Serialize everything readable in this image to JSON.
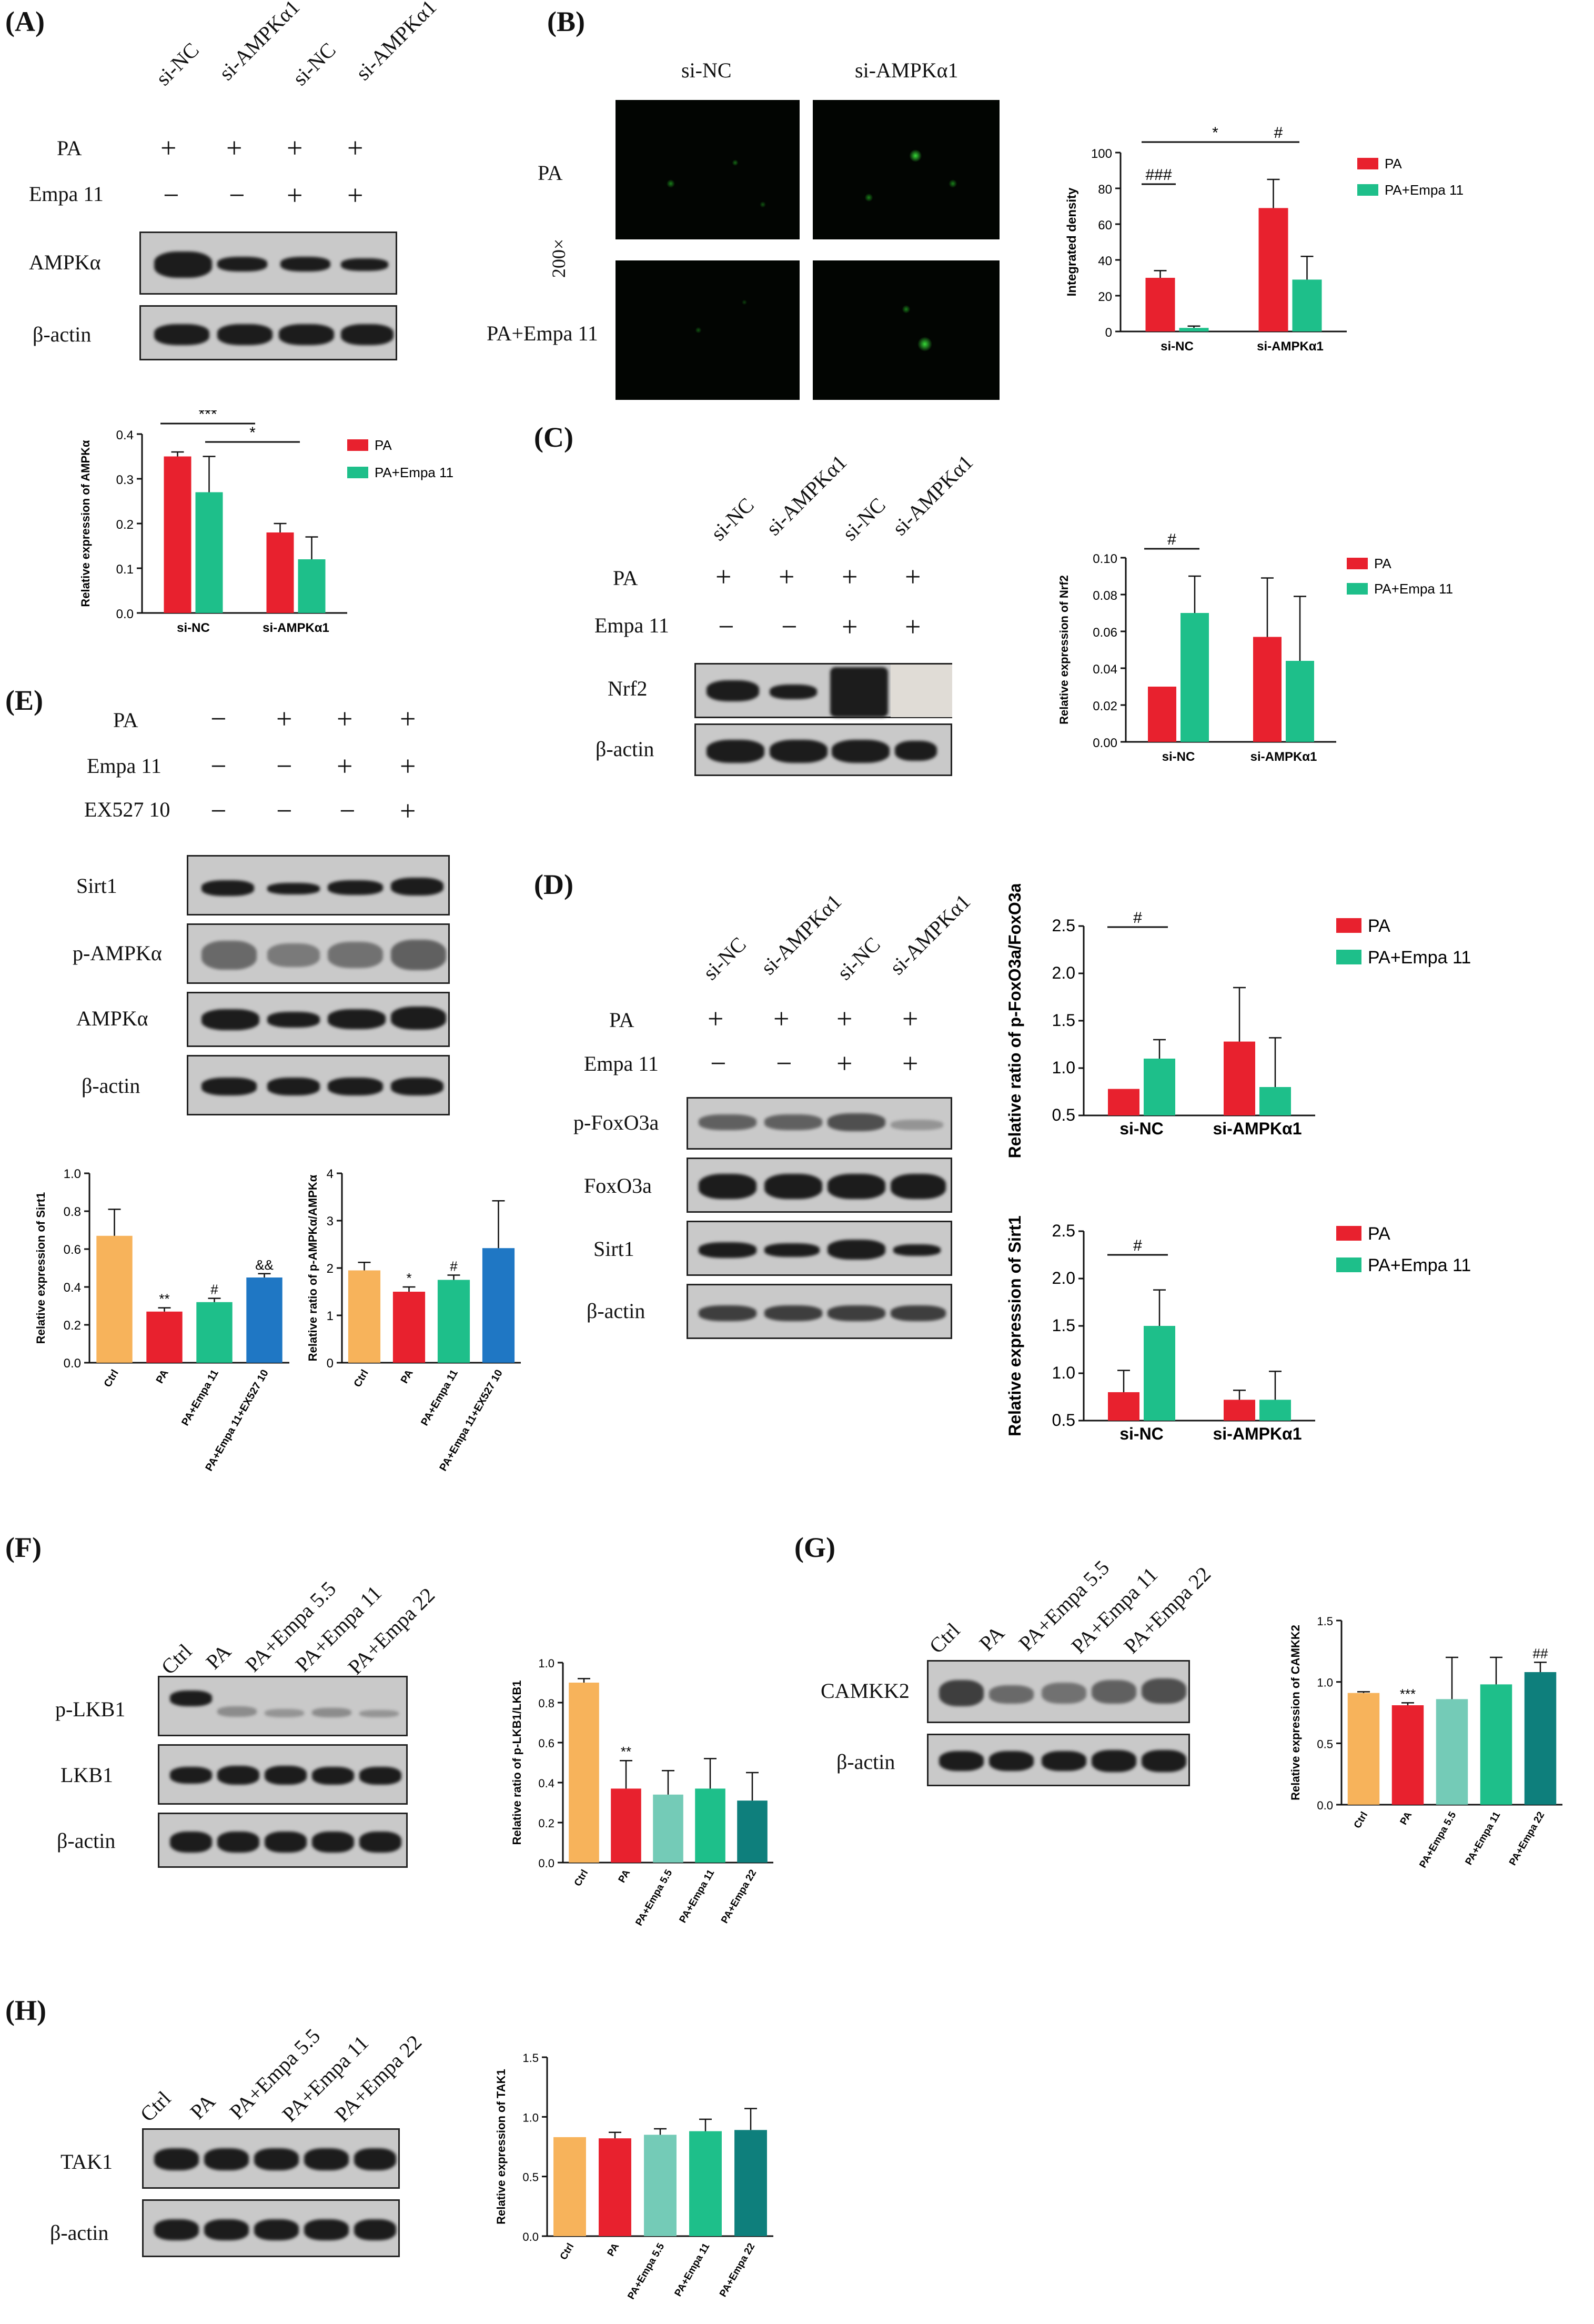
{
  "panels": {
    "A": {
      "label": "(A)",
      "lanes": [
        "si-NC",
        "si-AMPKα1",
        "si-NC",
        "si-AMPKα1"
      ],
      "rows": [
        {
          "name": "PA",
          "marks": [
            "+",
            "+",
            "+",
            "+"
          ]
        },
        {
          "name": "Empa 11",
          "marks": [
            "−",
            "−",
            "+",
            "+"
          ]
        }
      ],
      "blots": [
        "AMPKα",
        "β-actin"
      ],
      "chart_data": {
        "type": "bar",
        "categories": [
          "si-NC",
          "si-AMPKα1"
        ],
        "series": [
          {
            "name": "PA",
            "values": [
              0.35,
              0.18
            ],
            "err": [
              0.01,
              0.02
            ]
          },
          {
            "name": "PA+Empa 11",
            "values": [
              0.27,
              0.12
            ],
            "err": [
              0.08,
              0.05
            ]
          }
        ],
        "ylabel": "Relative expression of AMPKα",
        "ylim": [
          0,
          0.4
        ],
        "yticks": [
          "0.0",
          "0.1",
          "0.2",
          "0.3",
          "0.4"
        ],
        "significance": [
          "***",
          "*"
        ],
        "legend": "right"
      }
    },
    "B": {
      "label": "(B)",
      "columns": [
        "si-NC",
        "si-AMPKα1"
      ],
      "rows": [
        "PA",
        "PA+Empa 11"
      ],
      "magnification": "200×",
      "chart_data": {
        "type": "bar",
        "categories": [
          "si-NC",
          "si-AMPKα1"
        ],
        "series": [
          {
            "name": "PA",
            "values": [
              30,
              69
            ],
            "err": [
              4,
              16
            ]
          },
          {
            "name": "PA+Empa 11",
            "values": [
              2,
              29
            ],
            "err": [
              1,
              13
            ]
          }
        ],
        "ylabel": "Integrated density",
        "ylim": [
          0,
          100
        ],
        "yticks": [
          "0",
          "20",
          "40",
          "60",
          "80",
          "100"
        ],
        "significance": [
          "*",
          "###",
          "#"
        ],
        "legend": "right"
      }
    },
    "C": {
      "label": "(C)",
      "lanes": [
        "si-NC",
        "si-AMPKα1",
        "si-NC",
        "si-AMPKα1"
      ],
      "rows": [
        {
          "name": "PA",
          "marks": [
            "+",
            "+",
            "+",
            "+"
          ]
        },
        {
          "name": "Empa 11",
          "marks": [
            "−",
            "−",
            "+",
            "+"
          ]
        }
      ],
      "blots": [
        "Nrf2",
        "β-actin"
      ],
      "chart_data": {
        "type": "bar",
        "categories": [
          "si-NC",
          "si-AMPKα1"
        ],
        "series": [
          {
            "name": "PA",
            "values": [
              0.03,
              0.057
            ],
            "err": [
              0.0,
              0.032
            ]
          },
          {
            "name": "PA+Empa 11",
            "values": [
              0.07,
              0.044
            ],
            "err": [
              0.02,
              0.035
            ]
          }
        ],
        "ylabel": "Relative expression of Nrf2",
        "ylim": [
          0,
          0.1
        ],
        "yticks": [
          "0.00",
          "0.02",
          "0.04",
          "0.06",
          "0.08",
          "0.10"
        ],
        "significance": [
          "#"
        ],
        "legend": "right"
      }
    },
    "D": {
      "label": "(D)",
      "lanes": [
        "si-NC",
        "si-AMPKα1",
        "si-NC",
        "si-AMPKα1"
      ],
      "rows": [
        {
          "name": "PA",
          "marks": [
            "+",
            "+",
            "+",
            "+"
          ]
        },
        {
          "name": "Empa 11",
          "marks": [
            "−",
            "−",
            "+",
            "+"
          ]
        }
      ],
      "blots": [
        "p-FoxO3a",
        "FoxO3a",
        "Sirt1",
        "β-actin"
      ],
      "chart_data": [
        {
          "type": "bar",
          "categories": [
            "si-NC",
            "si-AMPKα1"
          ],
          "series": [
            {
              "name": "PA",
              "values": [
                0.78,
                1.28
              ],
              "err": [
                0.0,
                0.57
              ]
            },
            {
              "name": "PA+Empa 11",
              "values": [
                1.1,
                0.8
              ],
              "err": [
                0.2,
                0.52
              ]
            }
          ],
          "ylabel": "Relative ratio of p-FoxO3a/FoxO3a",
          "ylim": [
            0.5,
            2.5
          ],
          "yticks": [
            "0.5",
            "1.0",
            "1.5",
            "2.0",
            "2.5"
          ],
          "significance": [
            "#"
          ],
          "legend": "right"
        },
        {
          "type": "bar",
          "categories": [
            "si-NC",
            "si-AMPKα1"
          ],
          "series": [
            {
              "name": "PA",
              "values": [
                0.8,
                0.72
              ],
              "err": [
                0.23,
                0.1
              ]
            },
            {
              "name": "PA+Empa 11",
              "values": [
                1.5,
                0.72
              ],
              "err": [
                0.38,
                0.3
              ]
            }
          ],
          "ylabel": "Relative expression of Sirt1",
          "ylim": [
            0.5,
            2.5
          ],
          "yticks": [
            "0.5",
            "1.0",
            "1.5",
            "2.0",
            "2.5"
          ],
          "significance": [
            "#"
          ],
          "legend": "right"
        }
      ]
    },
    "E": {
      "label": "(E)",
      "rows": [
        {
          "name": "PA",
          "marks": [
            "−",
            "+",
            "+",
            "+"
          ]
        },
        {
          "name": "Empa 11",
          "marks": [
            "−",
            "−",
            "+",
            "+"
          ]
        },
        {
          "name": "EX527 10",
          "marks": [
            "−",
            "−",
            "−",
            "+"
          ]
        }
      ],
      "blots": [
        "Sirt1",
        "p-AMPKα",
        "AMPKα",
        "β-actin"
      ],
      "chart_data": [
        {
          "type": "bar",
          "categories": [
            "Ctrl",
            "PA",
            "PA+Empa 11",
            "PA+Empa 11+EX527 10"
          ],
          "values": [
            0.67,
            0.27,
            0.32,
            0.45
          ],
          "err": [
            0.14,
            0.02,
            0.02,
            0.02
          ],
          "marks": [
            "",
            "**",
            "#",
            "&&"
          ],
          "ylabel": "Relative expression of Sirt1",
          "ylim": [
            0,
            1.0
          ],
          "yticks": [
            "0.0",
            "0.2",
            "0.4",
            "0.6",
            "0.8",
            "1.0"
          ]
        },
        {
          "type": "bar",
          "categories": [
            "Ctrl",
            "PA",
            "PA+Empa 11",
            "PA+Empa 11+EX527 10"
          ],
          "values": [
            1.95,
            1.5,
            1.75,
            2.42
          ],
          "err": [
            0.17,
            0.1,
            0.1,
            1.0
          ],
          "marks": [
            "",
            "*",
            "#",
            ""
          ],
          "ylabel": "Relative ratio of p-AMPKα/AMPKα",
          "ylim": [
            0,
            4
          ],
          "yticks": [
            "0",
            "1",
            "2",
            "3",
            "4"
          ]
        }
      ]
    },
    "F": {
      "label": "(F)",
      "lanes": [
        "Ctrl",
        "PA",
        "PA+Empa 5.5",
        "PA+Empa 11",
        "PA+Empa 22"
      ],
      "blots": [
        "p-LKB1",
        "LKB1",
        "β-actin"
      ],
      "chart_data": {
        "type": "bar",
        "categories": [
          "Ctrl",
          "PA",
          "PA+Empa 5.5",
          "PA+Empa 11",
          "PA+Empa 22"
        ],
        "values": [
          0.9,
          0.37,
          0.34,
          0.37,
          0.31
        ],
        "err": [
          0.02,
          0.14,
          0.12,
          0.15,
          0.14
        ],
        "marks": [
          "",
          "**",
          "",
          "",
          ""
        ],
        "ylabel": "Relative ratio of p-LKB1/LKB1",
        "ylim": [
          0,
          1.0
        ],
        "yticks": [
          "0.0",
          "0.2",
          "0.4",
          "0.6",
          "0.8",
          "1.0"
        ]
      }
    },
    "G": {
      "label": "(G)",
      "lanes": [
        "Ctrl",
        "PA",
        "PA+Empa 5.5",
        "PA+Empa 11",
        "PA+Empa 22"
      ],
      "blots": [
        "CAMKK2",
        "β-actin"
      ],
      "chart_data": {
        "type": "bar",
        "categories": [
          "Ctrl",
          "PA",
          "PA+Empa 5.5",
          "PA+Empa 11",
          "PA+Empa 22"
        ],
        "values": [
          0.91,
          0.81,
          0.86,
          0.98,
          1.08
        ],
        "err": [
          0.01,
          0.02,
          0.34,
          0.22,
          0.08
        ],
        "marks": [
          "",
          "***",
          "",
          "",
          "##"
        ],
        "ylabel": "Relative expression of CAMKK2",
        "ylim": [
          0,
          1.5
        ],
        "yticks": [
          "0.0",
          "0.5",
          "1.0",
          "1.5"
        ]
      }
    },
    "H": {
      "label": "(H)",
      "lanes": [
        "Ctrl",
        "PA",
        "PA+Empa 5.5",
        "PA+Empa 11",
        "PA+Empa 22"
      ],
      "blots": [
        "TAK1",
        "β-actin"
      ],
      "chart_data": {
        "type": "bar",
        "categories": [
          "Ctrl",
          "PA",
          "PA+Empa 5.5",
          "PA+Empa 11",
          "PA+Empa 22"
        ],
        "values": [
          0.83,
          0.82,
          0.85,
          0.88,
          0.89
        ],
        "err": [
          0.0,
          0.05,
          0.05,
          0.1,
          0.18
        ],
        "marks": [
          "",
          "",
          "",
          "",
          ""
        ],
        "ylabel": "Relative expression of TAK1",
        "ylim": [
          0,
          1.5
        ],
        "yticks": [
          "0.0",
          "0.5",
          "1.0",
          "1.5"
        ]
      }
    }
  },
  "colors": {
    "red": "#e8212e",
    "green": "#1ebf8a",
    "orange": "#f7b35b",
    "blue": "#1f77c4",
    "light_teal": "#74cbb7",
    "dark_teal": "#0e7f7c"
  }
}
